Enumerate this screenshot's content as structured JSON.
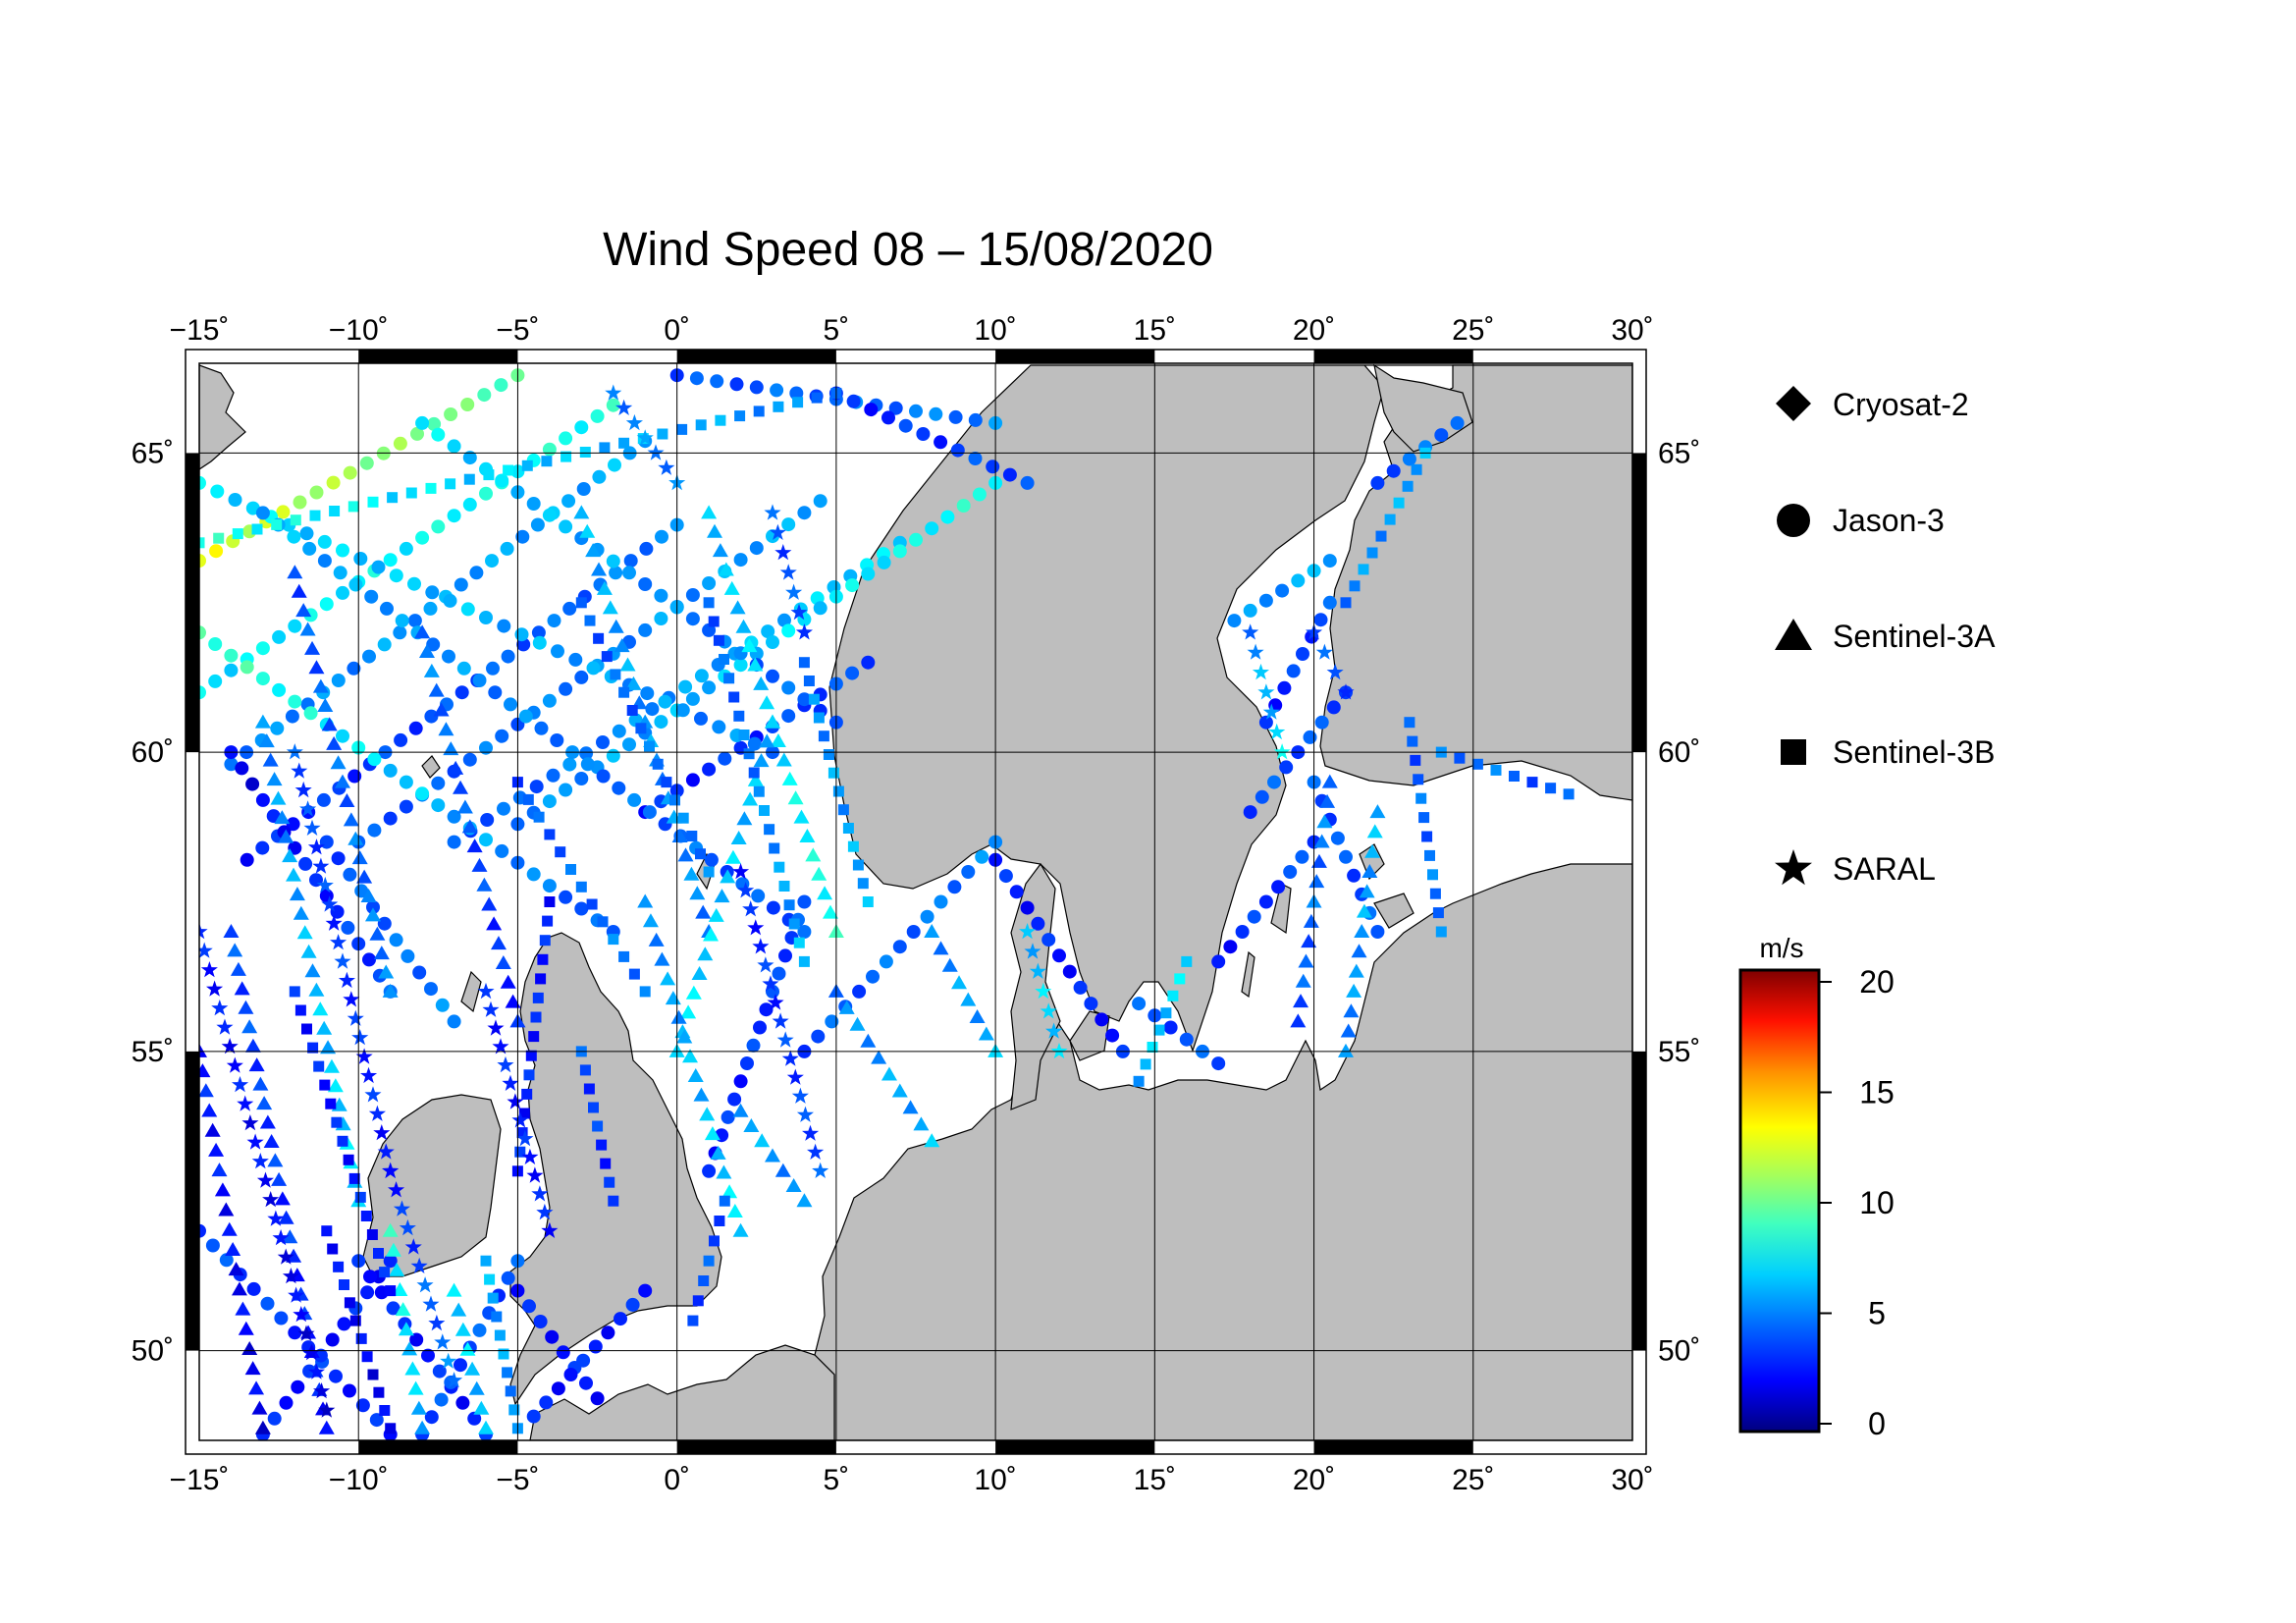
{
  "title": "Wind Speed 08 – 15/08/2020",
  "map": {
    "lon_range": [
      -15,
      30
    ],
    "lat_range": [
      48.5,
      66.5
    ],
    "lon_ticks": [
      {
        "value": -15,
        "label": "−15˚"
      },
      {
        "value": -10,
        "label": "−10˚"
      },
      {
        "value": -5,
        "label": "−5˚"
      },
      {
        "value": 0,
        "label": "0˚"
      },
      {
        "value": 5,
        "label": "5˚"
      },
      {
        "value": 10,
        "label": "10˚"
      },
      {
        "value": 15,
        "label": "15˚"
      },
      {
        "value": 20,
        "label": "20˚"
      },
      {
        "value": 25,
        "label": "25˚"
      },
      {
        "value": 30,
        "label": "30˚"
      }
    ],
    "lat_ticks": [
      {
        "value": 50,
        "label": "50˚"
      },
      {
        "value": 55,
        "label": "55˚"
      },
      {
        "value": 60,
        "label": "60˚"
      },
      {
        "value": 65,
        "label": "65˚"
      }
    ],
    "land_color": "#bebebe",
    "sea_color": "#ffffff"
  },
  "legend": {
    "items": [
      {
        "label": "Cryosat-2",
        "symbol": "diamond"
      },
      {
        "label": "Jason-3",
        "symbol": "circle"
      },
      {
        "label": "Sentinel-3A",
        "symbol": "triangle"
      },
      {
        "label": "Sentinel-3B",
        "symbol": "square"
      },
      {
        "label": "SARAL",
        "symbol": "star"
      }
    ]
  },
  "colorbar": {
    "unit": "m/s",
    "min": 0,
    "max": 20,
    "ticks": [
      {
        "value": 0,
        "label": "0"
      },
      {
        "value": 5,
        "label": "5"
      },
      {
        "value": 10,
        "label": "10"
      },
      {
        "value": 15,
        "label": "15"
      },
      {
        "value": 20,
        "label": "20"
      }
    ]
  },
  "tracks": [
    {
      "sym": "circle",
      "from": [
        -15,
        63.2
      ],
      "to": [
        -5,
        66.3
      ],
      "v": [
        12,
        9
      ]
    },
    {
      "sym": "circle",
      "from": [
        -15,
        61.0
      ],
      "to": [
        -2,
        65.8
      ],
      "v": [
        7,
        8
      ]
    },
    {
      "sym": "circle",
      "from": [
        -14,
        59.8
      ],
      "to": [
        -1,
        65.2
      ],
      "v": [
        5,
        6
      ]
    },
    {
      "sym": "circle",
      "from": [
        -13.5,
        58.2
      ],
      "to": [
        0,
        63.8
      ],
      "v": [
        3,
        5
      ]
    },
    {
      "sym": "circle",
      "from": [
        -10,
        58.5
      ],
      "to": [
        4.5,
        64.2
      ],
      "v": [
        4,
        6
      ]
    },
    {
      "sym": "circle",
      "from": [
        -7,
        58.5
      ],
      "to": [
        7,
        63.5
      ],
      "v": [
        4,
        7
      ]
    },
    {
      "sym": "circle",
      "from": [
        -5,
        58.8
      ],
      "to": [
        10,
        64.5
      ],
      "v": [
        5,
        8
      ]
    },
    {
      "sym": "circle",
      "from": [
        -1,
        59.0
      ],
      "to": [
        6,
        61.5
      ],
      "v": [
        3,
        4
      ]
    },
    {
      "sym": "circle",
      "from": [
        -15,
        64.5
      ],
      "to": [
        3,
        60.0
      ],
      "v": [
        7,
        5
      ]
    },
    {
      "sym": "circle",
      "from": [
        -15,
        62.0
      ],
      "to": [
        -2,
        57.0
      ],
      "v": [
        9,
        4
      ]
    },
    {
      "sym": "circle",
      "from": [
        -13,
        64.0
      ],
      "to": [
        4,
        57.0
      ],
      "v": [
        6,
        4
      ]
    },
    {
      "sym": "circle",
      "from": [
        -8,
        65.5
      ],
      "to": [
        5,
        60.5
      ],
      "v": [
        7,
        4
      ]
    },
    {
      "sym": "circle",
      "from": [
        -14,
        60.0
      ],
      "to": [
        -9,
        56.0
      ],
      "v": [
        2,
        4
      ]
    },
    {
      "sym": "circle",
      "from": [
        -11,
        58.5
      ],
      "to": [
        -7,
        55.5
      ],
      "v": [
        4,
        5
      ]
    },
    {
      "sym": "circle",
      "from": [
        -15,
        52.0
      ],
      "to": [
        -9,
        48.6
      ],
      "v": [
        4,
        3
      ]
    },
    {
      "sym": "circle",
      "from": [
        -13,
        48.6
      ],
      "to": [
        -9,
        51.5
      ],
      "v": [
        3,
        3
      ]
    },
    {
      "sym": "circle",
      "from": [
        -10,
        51.5
      ],
      "to": [
        -6,
        48.6
      ],
      "v": [
        3,
        3
      ]
    },
    {
      "sym": "circle",
      "from": [
        -8,
        48.6
      ],
      "to": [
        -5,
        51.5
      ],
      "v": [
        4,
        4
      ]
    },
    {
      "sym": "circle",
      "from": [
        -5,
        51.0
      ],
      "to": [
        -2.5,
        49.2
      ],
      "v": [
        3,
        3
      ]
    },
    {
      "sym": "circle",
      "from": [
        -4.5,
        48.9
      ],
      "to": [
        -1,
        51.0
      ],
      "v": [
        3,
        3
      ]
    },
    {
      "sym": "circle",
      "from": [
        1,
        53.0
      ],
      "to": [
        4,
        57.5
      ],
      "v": [
        3,
        4
      ]
    },
    {
      "sym": "circle",
      "from": [
        4,
        55.0
      ],
      "to": [
        10,
        58.5
      ],
      "v": [
        4,
        5
      ]
    },
    {
      "sym": "circle",
      "from": [
        10,
        58.2
      ],
      "to": [
        14,
        55.0
      ],
      "v": [
        3,
        3
      ]
    },
    {
      "sym": "circle",
      "from": [
        14.5,
        55.8
      ],
      "to": [
        17,
        54.8
      ],
      "v": [
        4,
        4
      ]
    },
    {
      "sym": "circle",
      "from": [
        17,
        56.5
      ],
      "to": [
        20,
        58.5
      ],
      "v": [
        3,
        4
      ]
    },
    {
      "sym": "circle",
      "from": [
        18,
        59.0
      ],
      "to": [
        21,
        61.0
      ],
      "v": [
        4,
        4
      ]
    },
    {
      "sym": "circle",
      "from": [
        17.5,
        62.2
      ],
      "to": [
        20.5,
        63.2
      ],
      "v": [
        5,
        6
      ]
    },
    {
      "sym": "circle",
      "from": [
        20,
        59.5
      ],
      "to": [
        22,
        57.0
      ],
      "v": [
        4,
        4
      ]
    },
    {
      "sym": "circle",
      "from": [
        22,
        64.5
      ],
      "to": [
        24.5,
        65.5
      ],
      "v": [
        4,
        5
      ]
    },
    {
      "sym": "circle",
      "from": [
        0,
        66.3
      ],
      "to": [
        10,
        65.5
      ],
      "v": [
        4,
        5
      ]
    },
    {
      "sym": "circle",
      "from": [
        5,
        66.0
      ],
      "to": [
        11,
        64.5
      ],
      "v": [
        3,
        4
      ]
    },
    {
      "sym": "circle",
      "from": [
        18.5,
        60.5
      ],
      "to": [
        20.5,
        62.5
      ],
      "v": [
        3,
        4
      ]
    },
    {
      "sym": "triangle",
      "from": [
        -15,
        55.0
      ],
      "to": [
        -13,
        48.7
      ],
      "v": [
        3,
        2
      ]
    },
    {
      "sym": "triangle",
      "from": [
        -14,
        57.0
      ],
      "to": [
        -11,
        48.7
      ],
      "v": [
        4,
        3
      ]
    },
    {
      "sym": "triangle",
      "from": [
        -13,
        60.5
      ],
      "to": [
        -10,
        52.5
      ],
      "v": [
        5,
        7
      ]
    },
    {
      "sym": "triangle",
      "from": [
        -12,
        63.0
      ],
      "to": [
        -9,
        56.0
      ],
      "v": [
        4,
        5
      ]
    },
    {
      "sym": "triangle",
      "from": [
        -8,
        62.0
      ],
      "to": [
        -5,
        55.5
      ],
      "v": [
        5,
        3
      ]
    },
    {
      "sym": "triangle",
      "from": [
        -3,
        64.0
      ],
      "to": [
        1,
        57.0
      ],
      "v": [
        6,
        5
      ]
    },
    {
      "sym": "triangle",
      "from": [
        1,
        64.0
      ],
      "to": [
        5,
        57.0
      ],
      "v": [
        6,
        8
      ]
    },
    {
      "sym": "triangle",
      "from": [
        0,
        55.0
      ],
      "to": [
        3,
        60.5
      ],
      "v": [
        7,
        6
      ]
    },
    {
      "sym": "triangle",
      "from": [
        5,
        56.0
      ],
      "to": [
        8,
        53.5
      ],
      "v": [
        5,
        6
      ]
    },
    {
      "sym": "triangle",
      "from": [
        -1,
        57.5
      ],
      "to": [
        2,
        52.0
      ],
      "v": [
        5,
        7
      ]
    },
    {
      "sym": "triangle",
      "from": [
        8,
        57.0
      ],
      "to": [
        10,
        55.0
      ],
      "v": [
        5,
        6
      ]
    },
    {
      "sym": "triangle",
      "from": [
        20.5,
        59.5
      ],
      "to": [
        19.5,
        55.5
      ],
      "v": [
        5,
        4
      ]
    },
    {
      "sym": "triangle",
      "from": [
        22,
        59.0
      ],
      "to": [
        21,
        55.0
      ],
      "v": [
        6,
        5
      ]
    },
    {
      "sym": "triangle",
      "from": [
        -9,
        52.0
      ],
      "to": [
        -8,
        48.7
      ],
      "v": [
        8,
        6
      ]
    },
    {
      "sym": "triangle",
      "from": [
        -7,
        51.0
      ],
      "to": [
        -6,
        48.7
      ],
      "v": [
        7,
        6
      ]
    },
    {
      "sym": "triangle",
      "from": [
        2,
        54.0
      ],
      "to": [
        4,
        52.5
      ],
      "v": [
        6,
        5
      ]
    },
    {
      "sym": "square",
      "from": [
        -15,
        63.5
      ],
      "to": [
        5,
        66.0
      ],
      "v": [
        8,
        5
      ]
    },
    {
      "sym": "square",
      "from": [
        -12,
        56.0
      ],
      "to": [
        -9,
        51.0
      ],
      "v": [
        3,
        3
      ]
    },
    {
      "sym": "square",
      "from": [
        -11,
        52.0
      ],
      "to": [
        -9,
        48.7
      ],
      "v": [
        3,
        2
      ]
    },
    {
      "sym": "square",
      "from": [
        -5,
        59.5
      ],
      "to": [
        -1,
        56.0
      ],
      "v": [
        4,
        5
      ]
    },
    {
      "sym": "square",
      "from": [
        -3,
        62.5
      ],
      "to": [
        1,
        58.0
      ],
      "v": [
        4,
        5
      ]
    },
    {
      "sym": "square",
      "from": [
        1,
        62.5
      ],
      "to": [
        4,
        56.5
      ],
      "v": [
        4,
        6
      ]
    },
    {
      "sym": "square",
      "from": [
        4,
        61.5
      ],
      "to": [
        6,
        57.5
      ],
      "v": [
        5,
        6
      ]
    },
    {
      "sym": "square",
      "from": [
        16,
        56.5
      ],
      "to": [
        14.5,
        54.5
      ],
      "v": [
        7,
        6
      ]
    },
    {
      "sym": "square",
      "from": [
        23,
        60.5
      ],
      "to": [
        24,
        57.0
      ],
      "v": [
        4,
        5
      ]
    },
    {
      "sym": "square",
      "from": [
        24,
        60.0
      ],
      "to": [
        28,
        59.3
      ],
      "v": [
        5,
        4
      ]
    },
    {
      "sym": "square",
      "from": [
        21,
        62.5
      ],
      "to": [
        23.5,
        65.0
      ],
      "v": [
        5,
        6
      ]
    },
    {
      "sym": "square",
      "from": [
        -6,
        51.5
      ],
      "to": [
        -5,
        48.7
      ],
      "v": [
        6,
        5
      ]
    },
    {
      "sym": "square",
      "from": [
        -3,
        55.0
      ],
      "to": [
        -2,
        52.5
      ],
      "v": [
        4,
        3
      ]
    },
    {
      "sym": "square",
      "from": [
        0.5,
        50.5
      ],
      "to": [
        1.5,
        52.5
      ],
      "v": [
        4,
        4
      ]
    },
    {
      "sym": "square",
      "from": [
        -4,
        57.5
      ],
      "to": [
        -5,
        53.0
      ],
      "v": [
        3,
        3
      ]
    },
    {
      "sym": "star",
      "from": [
        -15,
        57.0
      ],
      "to": [
        -11,
        49.0
      ],
      "v": [
        3,
        2
      ]
    },
    {
      "sym": "star",
      "from": [
        -12,
        60.0
      ],
      "to": [
        -9,
        53.0
      ],
      "v": [
        4,
        3
      ]
    },
    {
      "sym": "star",
      "from": [
        -9,
        53.0
      ],
      "to": [
        -7,
        49.5
      ],
      "v": [
        3,
        5
      ]
    },
    {
      "sym": "star",
      "from": [
        2,
        58.0
      ],
      "to": [
        4.5,
        53.0
      ],
      "v": [
        3,
        4
      ]
    },
    {
      "sym": "star",
      "from": [
        -6,
        56.0
      ],
      "to": [
        -4,
        52.0
      ],
      "v": [
        3,
        3
      ]
    },
    {
      "sym": "star",
      "from": [
        11,
        57.0
      ],
      "to": [
        12,
        55.0
      ],
      "v": [
        6,
        7
      ]
    },
    {
      "sym": "star",
      "from": [
        18,
        62.0
      ],
      "to": [
        19,
        60.0
      ],
      "v": [
        5,
        7
      ]
    },
    {
      "sym": "star",
      "from": [
        20,
        62.0
      ],
      "to": [
        21,
        61.0
      ],
      "v": [
        4,
        4
      ]
    },
    {
      "sym": "star",
      "from": [
        3,
        64.0
      ],
      "to": [
        4,
        62.0
      ],
      "v": [
        4,
        4
      ]
    },
    {
      "sym": "star",
      "from": [
        -2,
        66.0
      ],
      "to": [
        0,
        64.5
      ],
      "v": [
        5,
        5
      ]
    }
  ]
}
